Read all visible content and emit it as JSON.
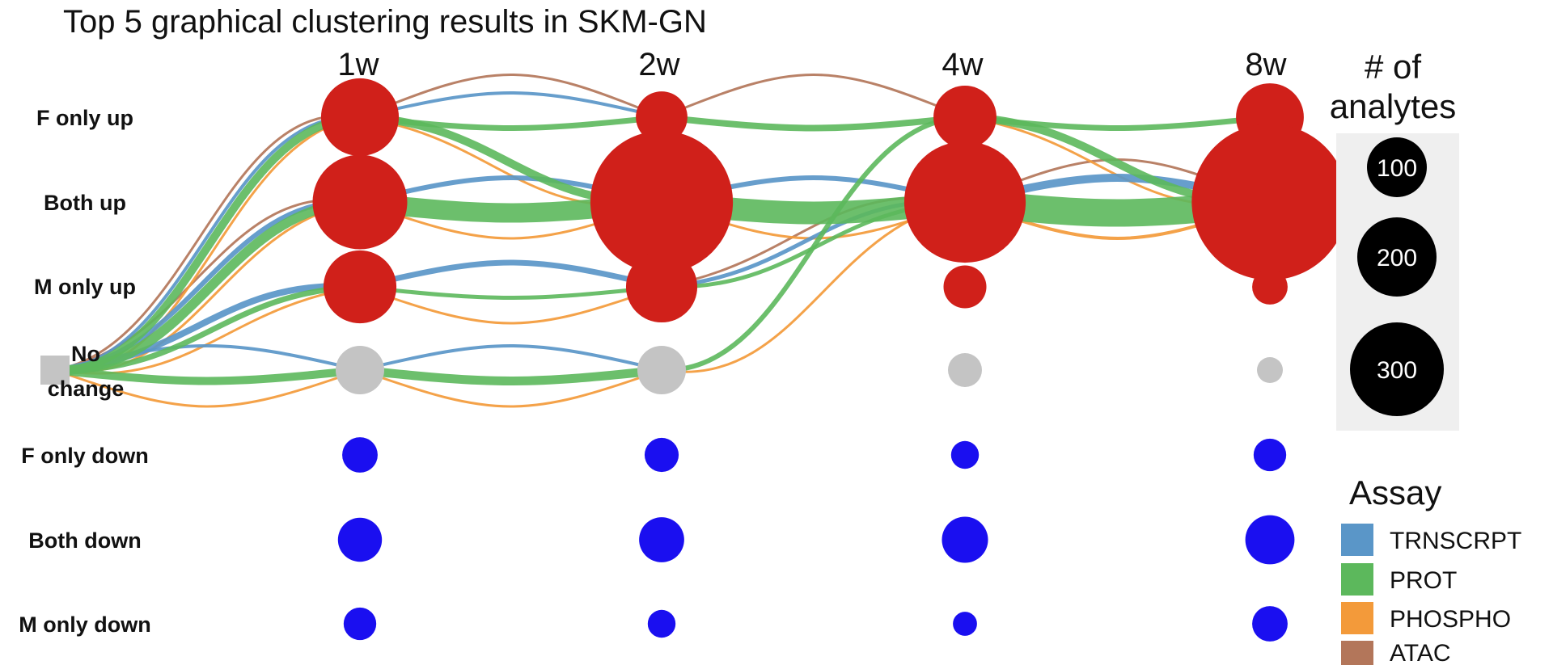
{
  "title": "Top 5 graphical clustering results in SKM-GN",
  "timepoints": [
    "1w",
    "2w",
    "4w",
    "8w"
  ],
  "states": [
    "F only up",
    "Both up",
    "M only up",
    "No change",
    "F only down",
    "Both down",
    "M only down"
  ],
  "no_change_label": [
    "No",
    "change"
  ],
  "colors": {
    "up": "#d0201a",
    "no_change": "#c4c4c4",
    "down": "#1a0ff0",
    "TRNSCRPT": "#5a96c8",
    "PROT": "#5cb85c",
    "PHOSPHO": "#f39a3a",
    "ATAC": "#b3765a",
    "size_legend_bg": "#efefef",
    "size_legend_dot": "#000000"
  },
  "node_sizes": [
    [
      125,
      55,
      82,
      95
    ],
    [
      185,
      420,
      305,
      505
    ],
    [
      110,
      105,
      38,
      26
    ],
    [
      0,
      0,
      0,
      0
    ],
    [
      26,
      24,
      16,
      22
    ],
    [
      40,
      42,
      44,
      50
    ],
    [
      22,
      16,
      12,
      26
    ]
  ],
  "start_node": {
    "state": "No change",
    "shape": "square"
  },
  "size_legend": {
    "title": [
      "# of",
      "analytes"
    ],
    "values": [
      100,
      200,
      300
    ]
  },
  "assay_legend": {
    "title": "Assay",
    "items": [
      "TRNSCRPT",
      "PROT",
      "PHOSPHO",
      "ATAC"
    ]
  },
  "edges": [
    {
      "assay": "ATAC",
      "from": [
        -1,
        "No change"
      ],
      "to": [
        0,
        "F only up"
      ],
      "weight": 3
    },
    {
      "assay": "ATAC",
      "from": [
        -1,
        "No change"
      ],
      "to": [
        0,
        "Both up"
      ],
      "weight": 3
    },
    {
      "assay": "TRNSCRPT",
      "from": [
        -1,
        "No change"
      ],
      "to": [
        0,
        "F only up"
      ],
      "weight": 4
    },
    {
      "assay": "PROT",
      "from": [
        -1,
        "No change"
      ],
      "to": [
        0,
        "F only up"
      ],
      "weight": 10
    },
    {
      "assay": "PROT",
      "from": [
        -1,
        "No change"
      ],
      "to": [
        0,
        "Both up"
      ],
      "weight": 12
    },
    {
      "assay": "TRNSCRPT",
      "from": [
        -1,
        "No change"
      ],
      "to": [
        0,
        "Both up"
      ],
      "weight": 6
    },
    {
      "assay": "PHOSPHO",
      "from": [
        -1,
        "No change"
      ],
      "to": [
        0,
        "F only up"
      ],
      "weight": 3
    },
    {
      "assay": "PHOSPHO",
      "from": [
        -1,
        "No change"
      ],
      "to": [
        0,
        "Both up"
      ],
      "weight": 3
    },
    {
      "assay": "TRNSCRPT",
      "from": [
        -1,
        "No change"
      ],
      "to": [
        0,
        "M only up"
      ],
      "weight": 8
    },
    {
      "assay": "PROT",
      "from": [
        -1,
        "No change"
      ],
      "to": [
        0,
        "M only up"
      ],
      "weight": 7
    },
    {
      "assay": "PHOSPHO",
      "from": [
        -1,
        "No change"
      ],
      "to": [
        0,
        "M only up"
      ],
      "weight": 3
    },
    {
      "assay": "TRNSCRPT",
      "from": [
        -1,
        "No change"
      ],
      "to": [
        0,
        "No change"
      ],
      "weight": 4
    },
    {
      "assay": "PROT",
      "from": [
        -1,
        "No change"
      ],
      "to": [
        0,
        "No change"
      ],
      "weight": 10
    },
    {
      "assay": "PHOSPHO",
      "from": [
        -1,
        "No change"
      ],
      "to": [
        0,
        "No change"
      ],
      "weight": 3
    },
    {
      "assay": "ATAC",
      "from": [
        0,
        "F only up"
      ],
      "to": [
        1,
        "F only up"
      ],
      "weight": 3
    },
    {
      "assay": "TRNSCRPT",
      "from": [
        0,
        "F only up"
      ],
      "to": [
        1,
        "F only up"
      ],
      "weight": 4
    },
    {
      "assay": "PROT",
      "from": [
        0,
        "F only up"
      ],
      "to": [
        1,
        "F only up"
      ],
      "weight": 7
    },
    {
      "assay": "PROT",
      "from": [
        0,
        "F only up"
      ],
      "to": [
        1,
        "Both up"
      ],
      "weight": 10
    },
    {
      "assay": "PHOSPHO",
      "from": [
        0,
        "F only up"
      ],
      "to": [
        1,
        "Both up"
      ],
      "weight": 3
    },
    {
      "assay": "TRNSCRPT",
      "from": [
        0,
        "Both up"
      ],
      "to": [
        1,
        "Both up"
      ],
      "weight": 6
    },
    {
      "assay": "PROT",
      "from": [
        0,
        "Both up"
      ],
      "to": [
        1,
        "Both up"
      ],
      "weight": 24
    },
    {
      "assay": "PHOSPHO",
      "from": [
        0,
        "Both up"
      ],
      "to": [
        1,
        "Both up"
      ],
      "weight": 3
    },
    {
      "assay": "TRNSCRPT",
      "from": [
        0,
        "M only up"
      ],
      "to": [
        1,
        "M only up"
      ],
      "weight": 7
    },
    {
      "assay": "PROT",
      "from": [
        0,
        "M only up"
      ],
      "to": [
        1,
        "M only up"
      ],
      "weight": 5
    },
    {
      "assay": "PHOSPHO",
      "from": [
        0,
        "M only up"
      ],
      "to": [
        1,
        "M only up"
      ],
      "weight": 3
    },
    {
      "assay": "TRNSCRPT",
      "from": [
        0,
        "No change"
      ],
      "to": [
        1,
        "No change"
      ],
      "weight": 4
    },
    {
      "assay": "PROT",
      "from": [
        0,
        "No change"
      ],
      "to": [
        1,
        "No change"
      ],
      "weight": 11
    },
    {
      "assay": "PHOSPHO",
      "from": [
        0,
        "No change"
      ],
      "to": [
        1,
        "No change"
      ],
      "weight": 3
    },
    {
      "assay": "ATAC",
      "from": [
        1,
        "F only up"
      ],
      "to": [
        2,
        "F only up"
      ],
      "weight": 3
    },
    {
      "assay": "PROT",
      "from": [
        1,
        "F only up"
      ],
      "to": [
        2,
        "F only up"
      ],
      "weight": 8
    },
    {
      "assay": "TRNSCRPT",
      "from": [
        1,
        "Both up"
      ],
      "to": [
        2,
        "Both up"
      ],
      "weight": 6
    },
    {
      "assay": "PROT",
      "from": [
        1,
        "Both up"
      ],
      "to": [
        2,
        "Both up"
      ],
      "weight": 28
    },
    {
      "assay": "PHOSPHO",
      "from": [
        1,
        "Both up"
      ],
      "to": [
        2,
        "Both up"
      ],
      "weight": 3
    },
    {
      "assay": "ATAC",
      "from": [
        1,
        "M only up"
      ],
      "to": [
        2,
        "Both up"
      ],
      "weight": 3
    },
    {
      "assay": "TRNSCRPT",
      "from": [
        1,
        "M only up"
      ],
      "to": [
        2,
        "Both up"
      ],
      "weight": 5
    },
    {
      "assay": "PROT",
      "from": [
        1,
        "M only up"
      ],
      "to": [
        2,
        "Both up"
      ],
      "weight": 5
    },
    {
      "assay": "PROT",
      "from": [
        1,
        "No change"
      ],
      "to": [
        2,
        "F only up"
      ],
      "weight": 6
    },
    {
      "assay": "PHOSPHO",
      "from": [
        1,
        "No change"
      ],
      "to": [
        2,
        "Both up"
      ],
      "weight": 3
    },
    {
      "assay": "PROT",
      "from": [
        2,
        "F only up"
      ],
      "to": [
        3,
        "F only up"
      ],
      "weight": 7
    },
    {
      "assay": "PROT",
      "from": [
        2,
        "F only up"
      ],
      "to": [
        3,
        "Both up"
      ],
      "weight": 10
    },
    {
      "assay": "PHOSPHO",
      "from": [
        2,
        "F only up"
      ],
      "to": [
        3,
        "Both up"
      ],
      "weight": 3
    },
    {
      "assay": "ATAC",
      "from": [
        2,
        "Both up"
      ],
      "to": [
        3,
        "Both up"
      ],
      "weight": 3
    },
    {
      "assay": "TRNSCRPT",
      "from": [
        2,
        "Both up"
      ],
      "to": [
        3,
        "Both up"
      ],
      "weight": 10
    },
    {
      "assay": "PROT",
      "from": [
        2,
        "Both up"
      ],
      "to": [
        3,
        "Both up"
      ],
      "weight": 34
    },
    {
      "assay": "PHOSPHO",
      "from": [
        2,
        "Both up"
      ],
      "to": [
        3,
        "Both up"
      ],
      "weight": 4
    }
  ]
}
